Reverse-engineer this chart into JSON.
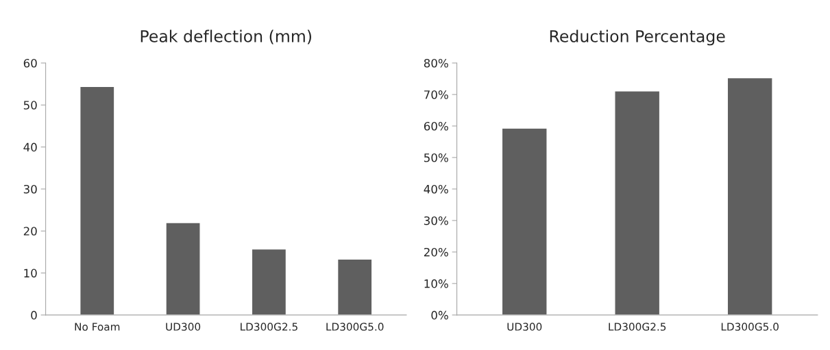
{
  "chart_data": [
    {
      "type": "bar",
      "title": "Peak deflection (mm)",
      "categories": [
        "No Foam",
        "UD300",
        "LD300G2.5",
        "LD300G5.0"
      ],
      "values": [
        54.4,
        22.0,
        15.7,
        13.3
      ],
      "color": "#5f5f5f",
      "ylim": [
        0,
        60
      ],
      "yticks": [
        0,
        10,
        20,
        30,
        40,
        50,
        60
      ],
      "grid": false
    },
    {
      "type": "bar",
      "title": "Reduction Percentage",
      "categories": [
        "UD300",
        "LD300G2.5",
        "LD300G5.0"
      ],
      "values": [
        59.3,
        71.1,
        75.3
      ],
      "color": "#5f5f5f",
      "ylim": [
        0,
        80
      ],
      "yticks": [
        {
          "value": 0,
          "label": "0%"
        },
        {
          "value": 10,
          "label": "10%"
        },
        {
          "value": 20,
          "label": "20%"
        },
        {
          "value": 30,
          "label": "30%"
        },
        {
          "value": 40,
          "label": "40%"
        },
        {
          "value": 50,
          "label": "50%"
        },
        {
          "value": 60,
          "label": "60%"
        },
        {
          "value": 70,
          "label": "70%"
        },
        {
          "value": 80,
          "label": "80%"
        }
      ],
      "grid": false
    }
  ]
}
